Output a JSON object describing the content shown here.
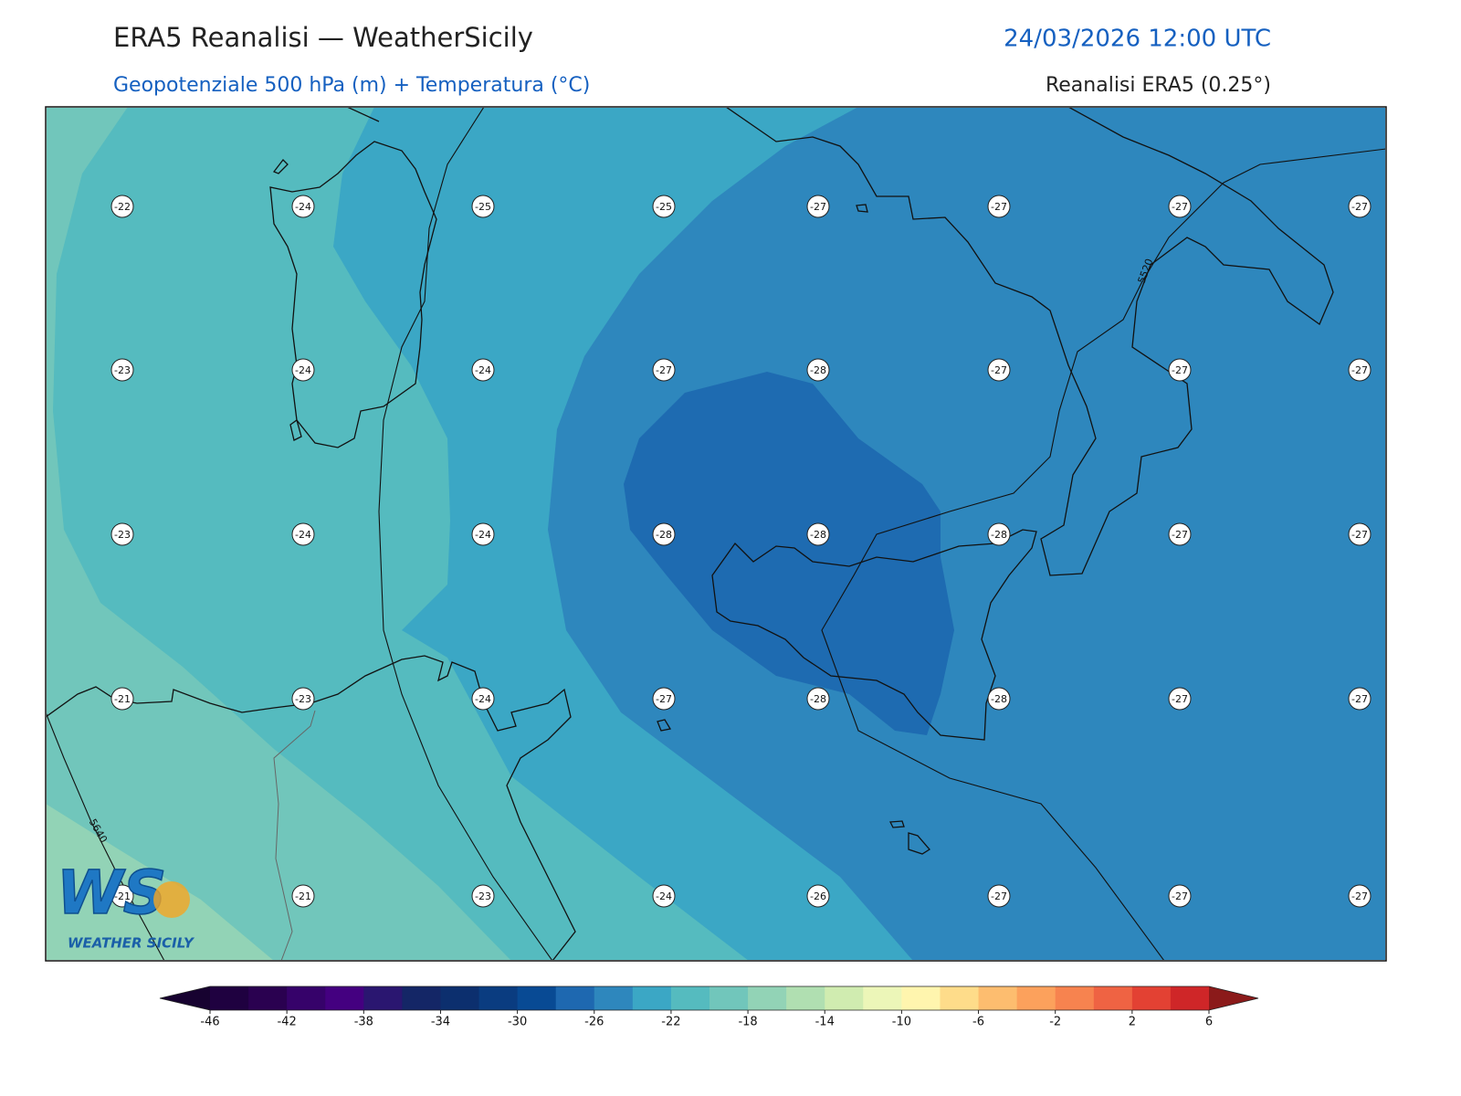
{
  "header": {
    "title": "ERA5 Reanalisi — WeatherSicily",
    "subtitle": "Geopotenziale 500 hPa (m) + Temperatura (°C)",
    "datetime": "24/03/2026 12:00 UTC",
    "source": "Reanalisi ERA5 (0.25°)"
  },
  "map": {
    "temperature_labels": [
      [
        -22,
        -24,
        -25,
        -25,
        -27,
        -27,
        -27,
        -27
      ],
      [
        -23,
        -24,
        -24,
        -27,
        -28,
        -27,
        -27,
        -27
      ],
      [
        -23,
        -24,
        -24,
        -28,
        -28,
        -28,
        -27,
        -27
      ],
      [
        -21,
        -23,
        -24,
        -27,
        -28,
        -28,
        -27,
        -27
      ],
      [
        -21,
        -21,
        -23,
        -24,
        -26,
        -27,
        -27,
        -27
      ]
    ],
    "contour_labels": [
      5520,
      5640
    ]
  },
  "colorbar": {
    "range": [
      -46,
      6
    ],
    "ticks": [
      -46,
      -42,
      -38,
      -34,
      -30,
      -26,
      -22,
      -18,
      -14,
      -10,
      -6,
      -2,
      2,
      6
    ],
    "colors": [
      "#1f0140",
      "#2a0150",
      "#36026a",
      "#440080",
      "#2a1670",
      "#142666",
      "#0c2f6e",
      "#0a3c80",
      "#084a94",
      "#1e68b0",
      "#2e87bd",
      "#3ba7c5",
      "#55bbbf",
      "#71c6bb",
      "#92d3b6",
      "#b0dfb1",
      "#d0ecb0",
      "#ecf6b8",
      "#fff5ae",
      "#fedc8a",
      "#fdbd6f",
      "#fca15c",
      "#f7834f",
      "#ef6343",
      "#e34133",
      "#cf2628"
    ],
    "under_color": "#170230",
    "over_color": "#8b1a1a"
  },
  "logo": {
    "mark": "WS",
    "text": "WEATHER SICILY"
  }
}
